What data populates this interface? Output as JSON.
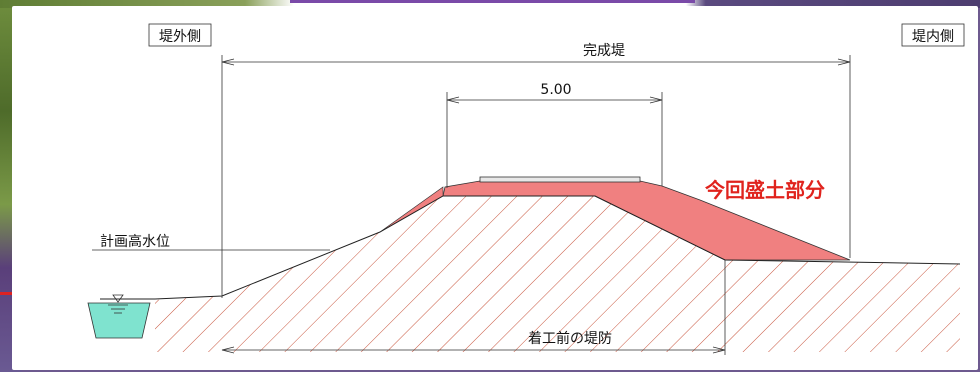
{
  "labels": {
    "outer_side": "堤外側",
    "inner_side": "堤内側",
    "completed_levee": "完成堤",
    "crown_width": "5.00",
    "fill_part": "今回盛土部分",
    "planned_high_water": "計画高水位",
    "existing_levee": "着工前の堤防"
  },
  "colors": {
    "fill_red": "#f08080",
    "hatch": "#c8553d",
    "water": "#7fe3cf",
    "red_text": "#e0231d"
  }
}
